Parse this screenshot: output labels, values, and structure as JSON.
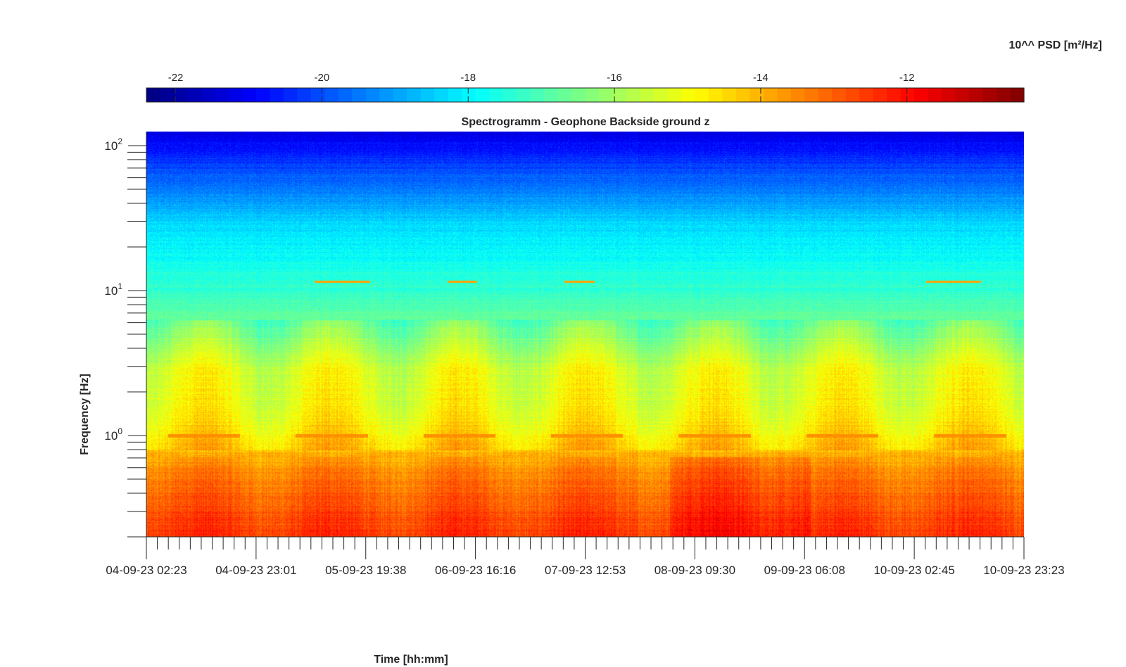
{
  "chart_data": {
    "type": "heatmap",
    "title": "Spectrogramm - Geophone Backside ground z",
    "xlabel": "Time [hh:mm]",
    "ylabel": "Frequency [Hz]",
    "y_scale": "log",
    "ylim": [
      0.2,
      125
    ],
    "y_ticks": [
      {
        "value": 1,
        "base": "10",
        "exp": "0"
      },
      {
        "value": 10,
        "base": "10",
        "exp": "1"
      },
      {
        "value": 100,
        "base": "10",
        "exp": "2"
      }
    ],
    "x_start": "04-09-23 02:23",
    "x_end": "10-09-23 23:23",
    "x_tick_labels": [
      "04-09-23 02:23",
      "04-09-23 23:01",
      "05-09-23 19:38",
      "06-09-23 16:16",
      "07-09-23 12:53",
      "08-09-23 09:30",
      "09-09-23 06:08",
      "10-09-23 02:45",
      "10-09-23 23:23"
    ],
    "colorbar": {
      "label": "10^^ PSD [m²/Hz]",
      "colormap": "jet",
      "range": [
        -22.4,
        -10.4
      ],
      "ticks": [
        -22,
        -20,
        -18,
        -16,
        -14,
        -12
      ],
      "tick_labels": [
        "-22",
        "-20",
        "-18",
        "-16",
        "-14",
        "-12"
      ]
    },
    "level_profile": [
      {
        "freq_hz": 0.2,
        "log10_psd": -12.5
      },
      {
        "freq_hz": 0.35,
        "log10_psd": -12.9
      },
      {
        "freq_hz": 0.6,
        "log10_psd": -13.5
      },
      {
        "freq_hz": 0.9,
        "log10_psd": -14.4
      },
      {
        "freq_hz": 1.5,
        "log10_psd": -15.0
      },
      {
        "freq_hz": 3.0,
        "log10_psd": -15.3
      },
      {
        "freq_hz": 6.0,
        "log10_psd": -16.6
      },
      {
        "freq_hz": 10,
        "log10_psd": -17.3
      },
      {
        "freq_hz": 30,
        "log10_psd": -18.4
      },
      {
        "freq_hz": 60,
        "log10_psd": -19.8
      },
      {
        "freq_hz": 125,
        "log10_psd": -21.2
      }
    ],
    "features": [
      {
        "name": "band",
        "freq_hz": 1.0,
        "log10_psd": -13.6
      },
      {
        "name": "band",
        "freq_hz": 11.5,
        "log10_psd": -13.8
      }
    ]
  }
}
